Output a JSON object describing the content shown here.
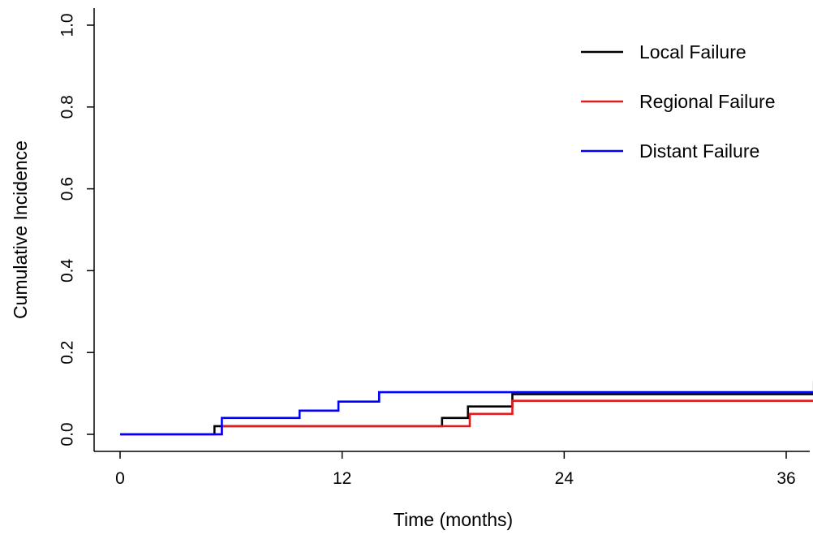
{
  "chart_data": {
    "type": "line",
    "step": true,
    "xlabel": "Time (months)",
    "ylabel": "Cumulative Incidence",
    "xlim": [
      0,
      37.5
    ],
    "ylim": [
      0,
      1.0
    ],
    "x_ticks": [
      0,
      12,
      24,
      36
    ],
    "x_tick_labels": [
      "0",
      "12",
      "24",
      "36"
    ],
    "y_ticks": [
      0.0,
      0.2,
      0.4,
      0.6,
      0.8,
      1.0
    ],
    "y_tick_labels": [
      "0.0",
      "0.2",
      "0.4",
      "0.6",
      "0.8",
      "1.0"
    ],
    "grid": false,
    "legend_position": "top-right",
    "series": [
      {
        "name": "Local Failure",
        "color": "#000000",
        "x": [
          0,
          5.1,
          17.4,
          18.8,
          21.2,
          37.5
        ],
        "y": [
          0,
          0.02,
          0.04,
          0.068,
          0.098,
          0.13
        ]
      },
      {
        "name": "Regional Failure",
        "color": "#e41a1c",
        "x": [
          0,
          5.5,
          18.9,
          21.2,
          37.5
        ],
        "y": [
          0,
          0.02,
          0.05,
          0.082,
          0.082
        ]
      },
      {
        "name": "Distant Failure",
        "color": "#0000ff",
        "x": [
          0,
          5.5,
          9.7,
          11.8,
          14.0,
          37.5
        ],
        "y": [
          0,
          0.04,
          0.058,
          0.08,
          0.103,
          0.103
        ]
      }
    ]
  }
}
